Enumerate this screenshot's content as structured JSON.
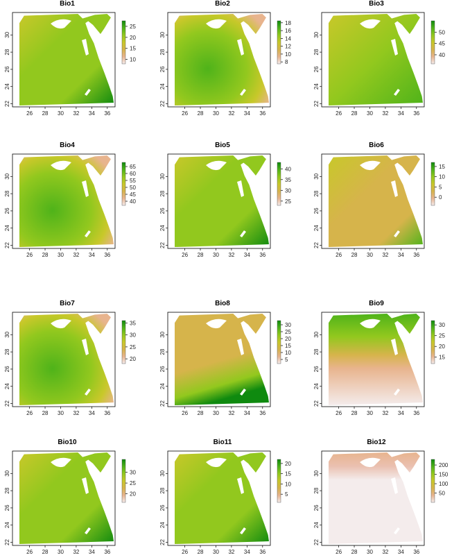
{
  "figure": {
    "description_free": true,
    "x_ticks": [
      "26",
      "28",
      "30",
      "32",
      "34",
      "36"
    ],
    "y_ticks": [
      "22",
      "24",
      "26",
      "28",
      "30"
    ],
    "color_ramp": [
      "#f4ecec",
      "#e8b48e",
      "#d6b44b",
      "#c8c82a",
      "#92c81e",
      "#4fb31a",
      "#0f8a0f"
    ],
    "panels": [
      {
        "title": "Bio1",
        "legend_ticks": [
          "10",
          "15",
          "20",
          "25"
        ],
        "min": 8,
        "max": 27.5,
        "pattern": "coastal_gradient"
      },
      {
        "title": "Bio2",
        "legend_ticks": [
          "8",
          "10",
          "12",
          "14",
          "16",
          "18"
        ],
        "min": 7.5,
        "max": 18.5,
        "pattern": "western_high"
      },
      {
        "title": "Bio3",
        "legend_ticks": [
          "40",
          "45",
          "50"
        ],
        "min": 36,
        "max": 55,
        "pattern": "uniform_green"
      },
      {
        "title": "Bio4",
        "legend_ticks": [
          "40",
          "45",
          "50",
          "55",
          "60",
          "65"
        ],
        "min": 37,
        "max": 68,
        "pattern": "western_high"
      },
      {
        "title": "Bio5",
        "legend_ticks": [
          "25",
          "30",
          "35",
          "40"
        ],
        "min": 23,
        "max": 43,
        "pattern": "coastal_gradient"
      },
      {
        "title": "Bio6",
        "legend_ticks": [
          "0",
          "5",
          "10",
          "15"
        ],
        "min": -4,
        "max": 17,
        "pattern": "low_orange"
      },
      {
        "title": "Bio7",
        "legend_ticks": [
          "20",
          "25",
          "30",
          "35"
        ],
        "min": 18,
        "max": 36,
        "pattern": "western_high"
      },
      {
        "title": "Bio8",
        "legend_ticks": [
          "5",
          "10",
          "15",
          "20",
          "25",
          "30"
        ],
        "min": 2,
        "max": 33,
        "pattern": "south_green"
      },
      {
        "title": "Bio9",
        "legend_ticks": [
          "15",
          "20",
          "25",
          "30"
        ],
        "min": 12,
        "max": 32,
        "pattern": "north_green"
      },
      {
        "title": "Bio10",
        "legend_ticks": [
          "20",
          "25",
          "30"
        ],
        "min": 16,
        "max": 36,
        "pattern": "coastal_gradient"
      },
      {
        "title": "Bio11",
        "legend_ticks": [
          "5",
          "10",
          "15",
          "20"
        ],
        "min": 1,
        "max": 22,
        "pattern": "coastal_gradient"
      },
      {
        "title": "Bio12",
        "legend_ticks": [
          "50",
          "100",
          "150",
          "200"
        ],
        "min": 0,
        "max": 230,
        "pattern": "coast_only"
      }
    ]
  }
}
